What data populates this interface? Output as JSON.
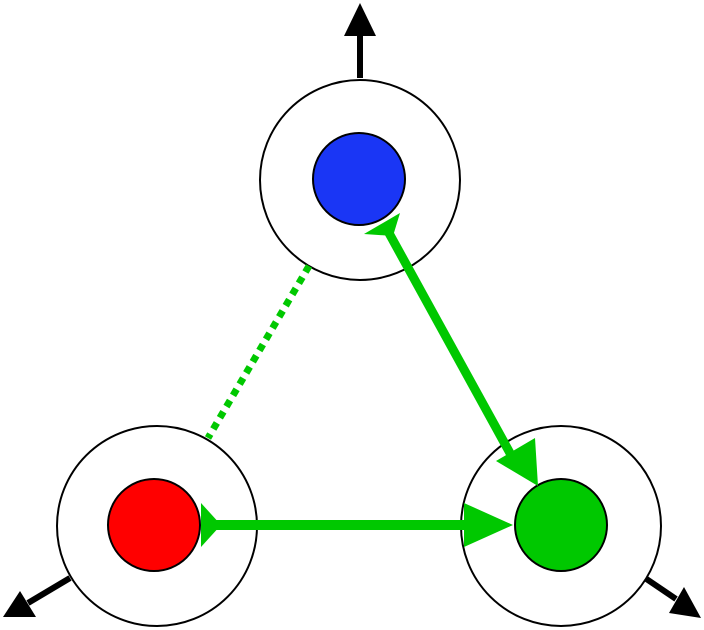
{
  "diagram": {
    "nodes": [
      {
        "id": "top",
        "fill": "#1a36f5",
        "outer_ring": "white",
        "axis_arrow": "up"
      },
      {
        "id": "left",
        "fill": "#ff0000",
        "outer_ring": "white",
        "axis_arrow": "down-left"
      },
      {
        "id": "right",
        "fill": "#00c800",
        "outer_ring": "white",
        "axis_arrow": "down-right"
      }
    ],
    "edges": [
      {
        "from": "top",
        "to": "right",
        "style": "solid",
        "color": "#00c800",
        "tail": "T-bar",
        "head": "arrowhead"
      },
      {
        "from": "left",
        "to": "right",
        "style": "solid",
        "color": "#00c800",
        "tail": "T-bar",
        "head": "arrowhead"
      },
      {
        "from": "top",
        "to": "left",
        "style": "dotted",
        "color": "#00c800"
      }
    ],
    "colors": {
      "stroke": "#000000",
      "axis_arrow": "#000000",
      "background": "#ffffff"
    }
  }
}
